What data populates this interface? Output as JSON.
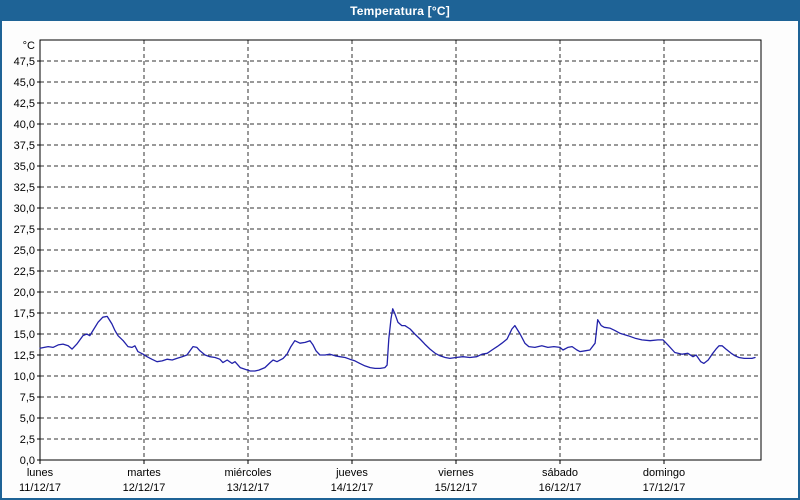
{
  "window": {
    "title": "Temperatura [°C]"
  },
  "colors": {
    "frame_blue": "#1e6396",
    "title_text": "#ffffff",
    "plot_background": "#ffffff",
    "grid_color": "#333333",
    "axis_color": "#000000",
    "line_color": "#2222aa"
  },
  "chart_data": {
    "type": "line",
    "title": "Temperatura [°C]",
    "grid": {
      "dashed": true,
      "horizontal": true,
      "vertical": true
    },
    "legend": "none",
    "y_axis": {
      "unit_label": "°C",
      "range": [
        0,
        50
      ],
      "tick_step": 2.5,
      "tick_values": [
        0,
        2.5,
        5,
        7.5,
        10,
        12.5,
        15,
        17.5,
        20,
        22.5,
        25,
        27.5,
        30,
        32.5,
        35,
        37.5,
        40,
        42.5,
        45,
        47.5
      ],
      "tick_labels": [
        "0,0",
        "2,5",
        "5,0",
        "7,5",
        "10,0",
        "12,5",
        "15,0",
        "17,5",
        "20,0",
        "22,5",
        "25,0",
        "27,5",
        "30,0",
        "32,5",
        "35,0",
        "37,5",
        "40,0",
        "42,5",
        "45,0",
        "47,5"
      ]
    },
    "x_axis": {
      "unit": "hours_since_monday_00h",
      "range_hours": [
        0,
        166.6
      ],
      "day_width_hours": 24,
      "gridlines_at_hours": [
        24,
        48,
        72,
        96,
        120,
        144
      ],
      "days": [
        {
          "name": "lunes",
          "date": "11/12/17"
        },
        {
          "name": "martes",
          "date": "12/12/17"
        },
        {
          "name": "miércoles",
          "date": "13/12/17"
        },
        {
          "name": "jueves",
          "date": "14/12/17"
        },
        {
          "name": "viernes",
          "date": "15/12/17"
        },
        {
          "name": "sábado",
          "date": "16/12/17"
        },
        {
          "name": "domingo",
          "date": "17/12/17"
        }
      ]
    },
    "series": [
      {
        "name": "Temperatura",
        "color": "#2222aa",
        "points": [
          [
            0,
            13.3
          ],
          [
            1,
            13.4
          ],
          [
            1.9,
            13.5
          ],
          [
            3,
            13.4
          ],
          [
            4.2,
            13.7
          ],
          [
            5.3,
            13.8
          ],
          [
            6.5,
            13.6
          ],
          [
            7.4,
            13.2
          ],
          [
            8.5,
            13.8
          ],
          [
            9.9,
            14.8
          ],
          [
            10.8,
            15.0
          ],
          [
            11.5,
            14.8
          ],
          [
            12.2,
            15.4
          ],
          [
            13.4,
            16.4
          ],
          [
            14.5,
            17.0
          ],
          [
            15.5,
            17.1
          ],
          [
            16.6,
            16.2
          ],
          [
            17.3,
            15.4
          ],
          [
            18,
            14.8
          ],
          [
            19.2,
            14.2
          ],
          [
            20.3,
            13.5
          ],
          [
            21.2,
            13.4
          ],
          [
            21.9,
            13.6
          ],
          [
            22.6,
            12.9
          ],
          [
            23.8,
            12.6
          ],
          [
            24.7,
            12.3
          ],
          [
            25.8,
            12.0
          ],
          [
            27,
            11.7
          ],
          [
            28.2,
            11.8
          ],
          [
            29.3,
            12.0
          ],
          [
            30.5,
            11.9
          ],
          [
            31.6,
            12.1
          ],
          [
            32.8,
            12.3
          ],
          [
            33.9,
            12.5
          ],
          [
            35.3,
            13.5
          ],
          [
            36.2,
            13.4
          ],
          [
            36.9,
            13.0
          ],
          [
            38.1,
            12.5
          ],
          [
            39.2,
            12.3
          ],
          [
            40.4,
            12.2
          ],
          [
            41.5,
            12.0
          ],
          [
            42.2,
            11.6
          ],
          [
            43.2,
            11.9
          ],
          [
            44.3,
            11.5
          ],
          [
            45,
            11.7
          ],
          [
            46.2,
            11.0
          ],
          [
            47.3,
            10.8
          ],
          [
            48.5,
            10.6
          ],
          [
            49.6,
            10.6
          ],
          [
            50.5,
            10.7
          ],
          [
            51.9,
            11.0
          ],
          [
            53.1,
            11.6
          ],
          [
            53.8,
            11.9
          ],
          [
            54.7,
            11.7
          ],
          [
            56.1,
            12.1
          ],
          [
            57,
            12.6
          ],
          [
            57.9,
            13.5
          ],
          [
            58.8,
            14.2
          ],
          [
            60,
            13.9
          ],
          [
            61.2,
            14.0
          ],
          [
            62.3,
            14.2
          ],
          [
            63,
            13.7
          ],
          [
            63.7,
            13.0
          ],
          [
            64.6,
            12.5
          ],
          [
            65.8,
            12.5
          ],
          [
            66.9,
            12.6
          ],
          [
            68.1,
            12.4
          ],
          [
            69.2,
            12.3
          ],
          [
            70.4,
            12.2
          ],
          [
            71.5,
            12.0
          ],
          [
            72.7,
            11.8
          ],
          [
            73.8,
            11.5
          ],
          [
            75,
            11.2
          ],
          [
            76.2,
            11.0
          ],
          [
            77.3,
            10.9
          ],
          [
            78.5,
            10.9
          ],
          [
            79.6,
            11.0
          ],
          [
            80.1,
            11.3
          ],
          [
            80.5,
            14.4
          ],
          [
            81,
            16.8
          ],
          [
            81.4,
            18.0
          ],
          [
            81.9,
            17.4
          ],
          [
            82.6,
            16.4
          ],
          [
            83.5,
            16.0
          ],
          [
            84.2,
            16.0
          ],
          [
            85.4,
            15.6
          ],
          [
            86.5,
            15.0
          ],
          [
            87.7,
            14.4
          ],
          [
            88.8,
            13.8
          ],
          [
            90,
            13.2
          ],
          [
            91.2,
            12.7
          ],
          [
            92.3,
            12.4
          ],
          [
            93.5,
            12.2
          ],
          [
            94.6,
            12.1
          ],
          [
            96,
            12.2
          ],
          [
            97.6,
            12.3
          ],
          [
            99.2,
            12.2
          ],
          [
            100.8,
            12.3
          ],
          [
            102,
            12.6
          ],
          [
            103.2,
            12.7
          ],
          [
            104.3,
            13.1
          ],
          [
            105.5,
            13.5
          ],
          [
            106.6,
            13.9
          ],
          [
            107.8,
            14.4
          ],
          [
            108.9,
            15.6
          ],
          [
            109.6,
            16.0
          ],
          [
            110.8,
            15.0
          ],
          [
            111.9,
            13.9
          ],
          [
            112.8,
            13.5
          ],
          [
            114.2,
            13.4
          ],
          [
            115.8,
            13.6
          ],
          [
            117.2,
            13.4
          ],
          [
            118.6,
            13.5
          ],
          [
            120,
            13.4
          ],
          [
            120.7,
            13.1
          ],
          [
            121.8,
            13.4
          ],
          [
            122.8,
            13.5
          ],
          [
            123.9,
            13.1
          ],
          [
            124.6,
            12.9
          ],
          [
            125.8,
            13.0
          ],
          [
            126.9,
            13.1
          ],
          [
            128.1,
            13.9
          ],
          [
            128.7,
            16.7
          ],
          [
            129.5,
            16.0
          ],
          [
            130.2,
            15.8
          ],
          [
            131.5,
            15.7
          ],
          [
            132.7,
            15.4
          ],
          [
            133.8,
            15.1
          ],
          [
            135.7,
            14.8
          ],
          [
            137.3,
            14.5
          ],
          [
            138.9,
            14.3
          ],
          [
            140.8,
            14.2
          ],
          [
            142.6,
            14.3
          ],
          [
            143.8,
            14.3
          ],
          [
            144.9,
            13.7
          ],
          [
            146.5,
            12.8
          ],
          [
            148.2,
            12.6
          ],
          [
            149.5,
            12.7
          ],
          [
            150.7,
            12.3
          ],
          [
            151.4,
            12.5
          ],
          [
            152.5,
            11.7
          ],
          [
            153.2,
            11.5
          ],
          [
            154.2,
            11.9
          ],
          [
            155.1,
            12.6
          ],
          [
            156,
            13.2
          ],
          [
            156.7,
            13.6
          ],
          [
            157.4,
            13.6
          ],
          [
            158.3,
            13.2
          ],
          [
            159.5,
            12.7
          ],
          [
            160.4,
            12.4
          ],
          [
            161.3,
            12.2
          ],
          [
            162.5,
            12.1
          ],
          [
            163.4,
            12.1
          ],
          [
            164.3,
            12.1
          ],
          [
            165,
            12.2
          ]
        ]
      }
    ]
  }
}
